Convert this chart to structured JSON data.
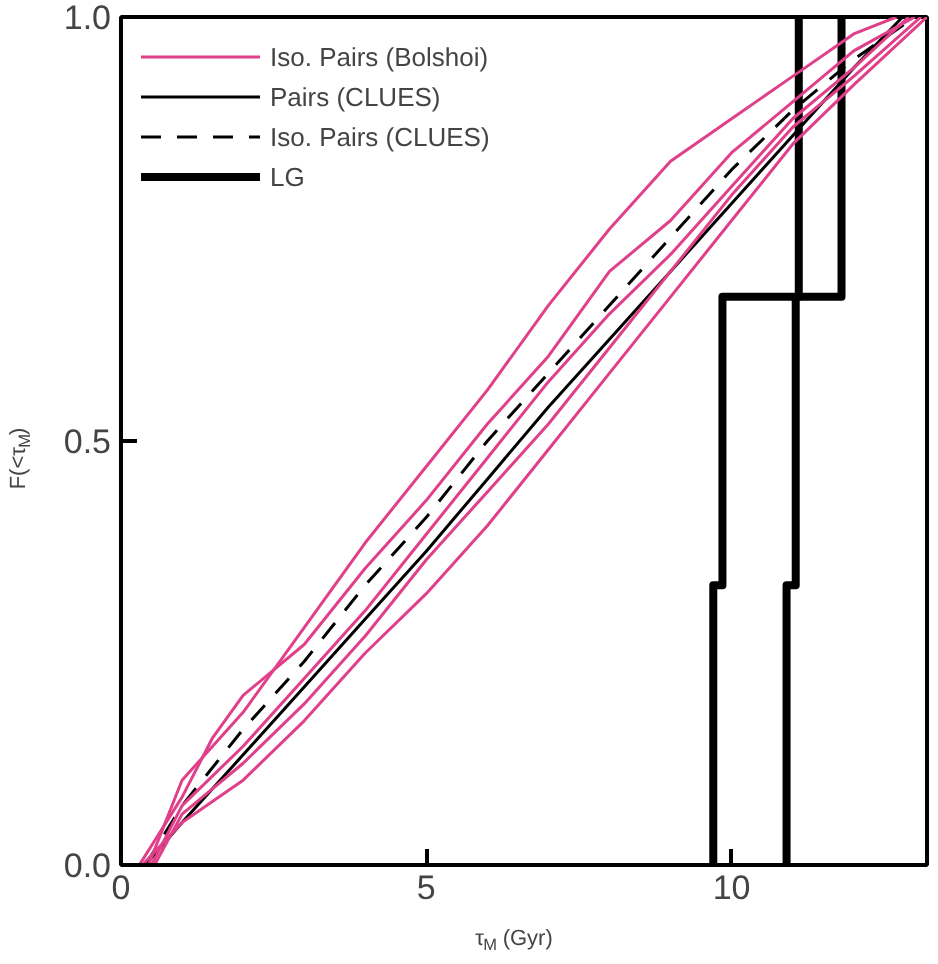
{
  "chart_data": {
    "type": "line",
    "xlabel": "τ$_{M}$ (Gyr)",
    "ylabel": "F(<τ$_{M}$)",
    "xlim": [
      0,
      13.2
    ],
    "ylim": [
      0,
      1
    ],
    "xticks": [
      0,
      5,
      10
    ],
    "yticks": [
      {
        "value": 0,
        "label": "0.0"
      },
      {
        "value": 0.5,
        "label": "0.5"
      },
      {
        "value": 1,
        "label": "1.0"
      }
    ],
    "grid": false,
    "legend": "top left",
    "series": [
      {
        "name": "Iso. Pairs (Bolshoi)",
        "color": "#e0408a",
        "line_style": "solid",
        "x": [
          0.3,
          1,
          1.5,
          2,
          3,
          4,
          5,
          6,
          7,
          8,
          9,
          10,
          11,
          12,
          13
        ],
        "values": [
          0,
          0.08,
          0.15,
          0.2,
          0.26,
          0.35,
          0.43,
          0.52,
          0.6,
          0.7,
          0.76,
          0.84,
          0.9,
          0.96,
          1
        ]
      },
      {
        "color": "#e0408a",
        "line_style": "solid",
        "x": [
          0.35,
          1,
          2,
          3,
          4,
          5,
          6,
          7,
          8,
          9,
          10,
          11,
          12,
          13.2
        ],
        "values": [
          0,
          0.05,
          0.1,
          0.17,
          0.25,
          0.32,
          0.4,
          0.49,
          0.58,
          0.67,
          0.76,
          0.85,
          0.92,
          1
        ]
      },
      {
        "color": "#e0408a",
        "line_style": "solid",
        "x": [
          0.45,
          1,
          2,
          3,
          4,
          5,
          6,
          7,
          8,
          9,
          10,
          11,
          12,
          12.7
        ],
        "values": [
          0,
          0.1,
          0.18,
          0.28,
          0.38,
          0.47,
          0.56,
          0.66,
          0.75,
          0.83,
          0.88,
          0.93,
          0.98,
          1
        ]
      },
      {
        "color": "#e0408a",
        "line_style": "solid",
        "x": [
          0.5,
          1,
          2,
          3,
          4,
          5,
          6,
          7,
          8,
          9,
          10,
          11,
          12,
          12.9
        ],
        "values": [
          0,
          0.07,
          0.14,
          0.22,
          0.3,
          0.39,
          0.48,
          0.57,
          0.65,
          0.72,
          0.8,
          0.88,
          0.94,
          1
        ]
      },
      {
        "color": "#e0408a",
        "line_style": "solid",
        "x": [
          0.55,
          1,
          2,
          3,
          4,
          5,
          6,
          7,
          8,
          9,
          10,
          11,
          12,
          13.1
        ],
        "values": [
          0,
          0.06,
          0.12,
          0.19,
          0.27,
          0.36,
          0.44,
          0.52,
          0.61,
          0.7,
          0.79,
          0.87,
          0.93,
          1
        ]
      },
      {
        "name": "Pairs (CLUES)",
        "color": "#000000",
        "line_style": "solid",
        "x": [
          0.4,
          1,
          2,
          3,
          4,
          5,
          6,
          7,
          8,
          9,
          10,
          11,
          12,
          12.8
        ],
        "values": [
          0,
          0.05,
          0.13,
          0.21,
          0.29,
          0.37,
          0.455,
          0.54,
          0.62,
          0.7,
          0.78,
          0.86,
          0.94,
          1
        ]
      },
      {
        "name": "Iso. Pairs (CLUES)",
        "color": "#000000",
        "line_style": "dashed",
        "x": [
          0.4,
          1,
          2,
          3,
          4,
          5,
          6,
          7,
          8,
          9,
          10,
          11,
          12,
          13
        ],
        "values": [
          0,
          0.07,
          0.16,
          0.24,
          0.33,
          0.41,
          0.5,
          0.58,
          0.66,
          0.74,
          0.82,
          0.89,
          0.95,
          1
        ]
      },
      {
        "name": "LG",
        "type": "step",
        "color": "#000000",
        "line_style": "solid",
        "x": [
          9.7,
          9.85,
          9.9,
          11.8,
          11.8
        ],
        "values": [
          0,
          0.33,
          0.67,
          0.67,
          1
        ]
      },
      {
        "type": "step",
        "color": "#000000",
        "line_style": "solid",
        "x": [
          10.9,
          11.05,
          11.1,
          11.1
        ],
        "values": [
          0,
          0.33,
          0.67,
          1
        ]
      }
    ]
  }
}
